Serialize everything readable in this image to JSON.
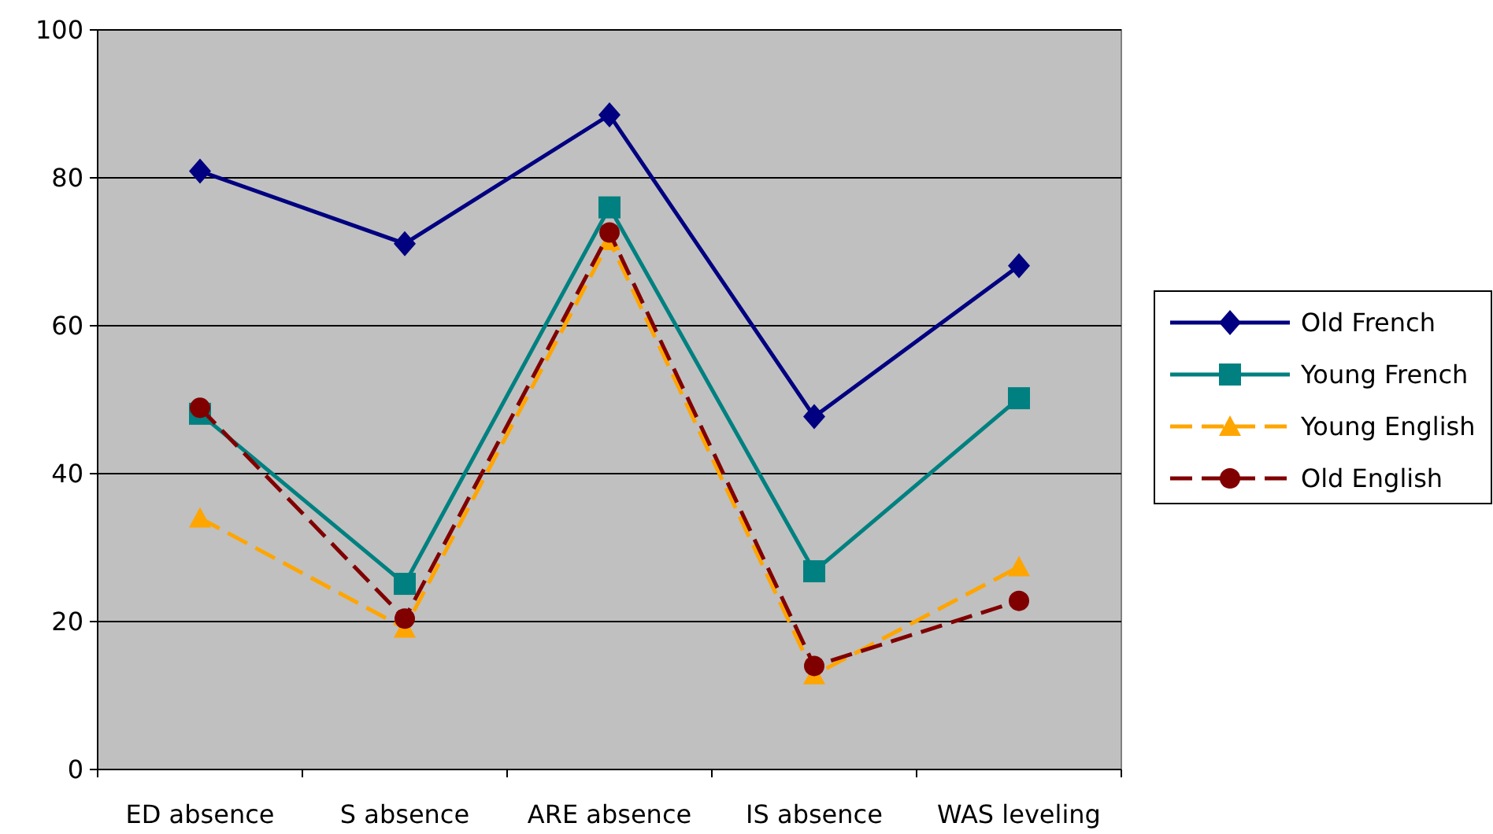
{
  "chart_data": {
    "type": "line",
    "categories": [
      "ED absence",
      "S absence",
      "ARE absence",
      "IS absence",
      "WAS leveling"
    ],
    "ylim": [
      0,
      100
    ],
    "yticks": [
      0,
      20,
      40,
      60,
      80,
      100
    ],
    "grid": "y",
    "legend": "right",
    "series": [
      {
        "name": "Old French",
        "color": "#000080",
        "values": [
          80.9,
          71.1,
          88.5,
          47.7,
          68.1
        ],
        "marker": "diamond",
        "line_style": "solid"
      },
      {
        "name": "Young French",
        "color": "#008080",
        "values": [
          48.1,
          25.1,
          76.0,
          26.8,
          50.2
        ],
        "marker": "square",
        "line_style": "solid"
      },
      {
        "name": "Young English",
        "color": "#ffa500",
        "values": [
          34.0,
          19.1,
          71.5,
          12.8,
          27.4
        ],
        "marker": "triangle",
        "line_style": "dashed"
      },
      {
        "name": "Old English",
        "color": "#800000",
        "values": [
          48.9,
          20.4,
          72.6,
          14.0,
          22.8
        ],
        "marker": "circle",
        "line_style": "dashed"
      }
    ]
  }
}
